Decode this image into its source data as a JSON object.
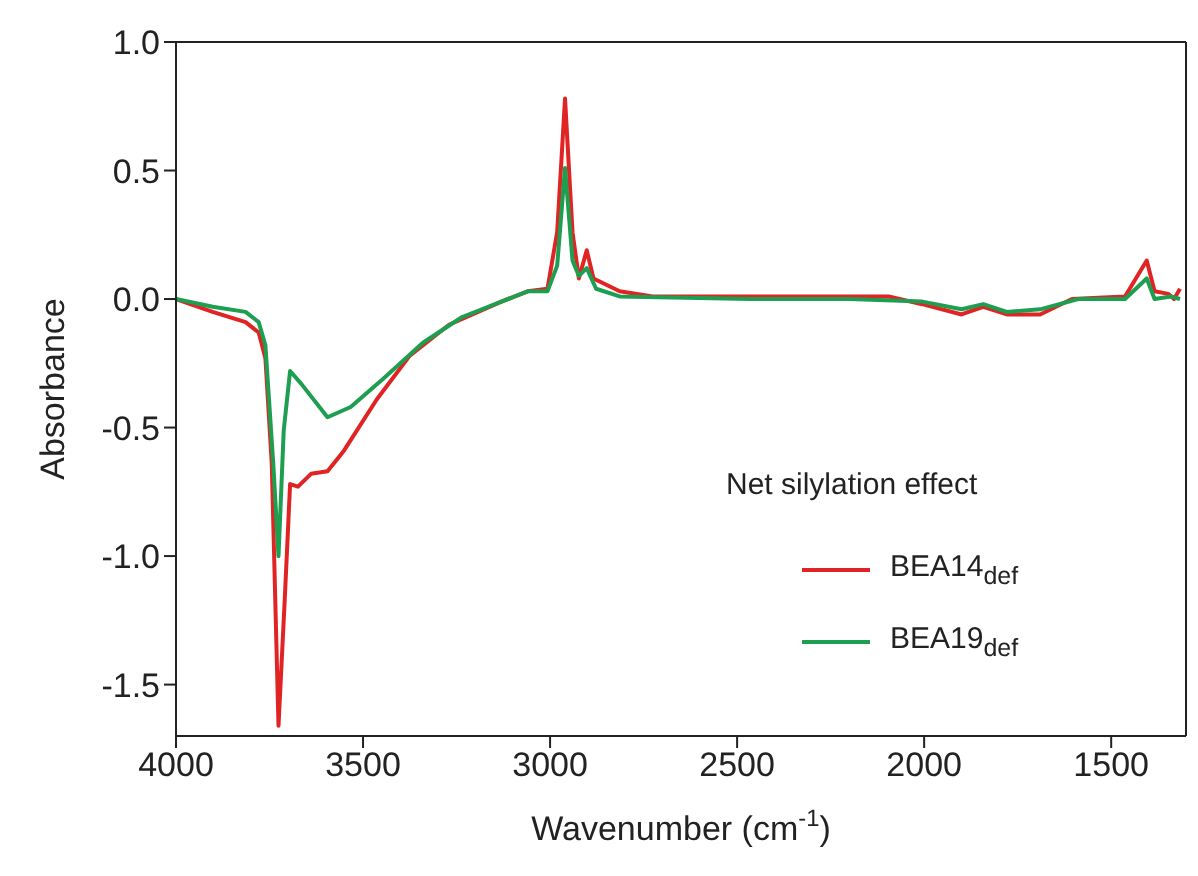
{
  "chart_data": {
    "type": "line",
    "xlabel": "Wavenumber (cm$^{-1}$)",
    "ylabel": "Absorbance",
    "legend_title": "Net silylation effect",
    "legend": "bottom right",
    "marker": "none",
    "line_style": "solid",
    "xlim": [
      4000,
      1300
    ],
    "xticks": [
      4000,
      3500,
      3000,
      2500,
      2000,
      1500
    ],
    "ylim": [
      -1.7,
      1.0
    ],
    "yticks": [
      {
        "value": 1.0,
        "label": "1.0"
      },
      {
        "value": 0.5,
        "label": "0.5"
      },
      {
        "value": 0.0,
        "label": "0.0"
      },
      {
        "value": -0.5,
        "label": "-0.5"
      },
      {
        "value": -1.0,
        "label": "-1.0"
      },
      {
        "value": -1.5,
        "label": "-1.5"
      }
    ],
    "series": [
      {
        "name": "BEA14$_{def}$",
        "color": "#e02424",
        "x": [
          4000,
          3902,
          3814,
          3779,
          3761,
          3744,
          3726,
          3709,
          3695,
          3674,
          3639,
          3595,
          3551,
          3463,
          3375,
          3270,
          3130,
          3060,
          3007,
          2981,
          2960,
          2940,
          2923,
          2902,
          2884,
          2814,
          2726,
          2463,
          2200,
          2095,
          2005,
          1900,
          1842,
          1779,
          1690,
          1605,
          1463,
          1405,
          1384,
          1347,
          1332,
          1316
        ],
        "values": [
          0.0,
          -0.05,
          -0.09,
          -0.13,
          -0.23,
          -0.64,
          -1.66,
          -1.16,
          -0.72,
          -0.73,
          -0.68,
          -0.67,
          -0.59,
          -0.39,
          -0.22,
          -0.1,
          -0.01,
          0.03,
          0.04,
          0.26,
          0.78,
          0.26,
          0.08,
          0.19,
          0.08,
          0.03,
          0.01,
          0.01,
          0.01,
          0.01,
          -0.02,
          -0.06,
          -0.03,
          -0.06,
          -0.06,
          0.0,
          0.01,
          0.15,
          0.03,
          0.02,
          0.0,
          0.04
        ]
      },
      {
        "name": "BEA19$_{def}$",
        "color": "#1e9e50",
        "x": [
          4000,
          3902,
          3814,
          3779,
          3761,
          3740,
          3726,
          3712,
          3695,
          3665,
          3595,
          3533,
          3446,
          3340,
          3235,
          3130,
          3060,
          3007,
          2981,
          2960,
          2940,
          2923,
          2902,
          2877,
          2814,
          2463,
          2200,
          2005,
          1900,
          1842,
          1779,
          1690,
          1588,
          1463,
          1405,
          1384,
          1340,
          1316
        ],
        "values": [
          0.0,
          -0.03,
          -0.05,
          -0.09,
          -0.18,
          -0.64,
          -1.0,
          -0.51,
          -0.28,
          -0.33,
          -0.46,
          -0.42,
          -0.31,
          -0.17,
          -0.07,
          -0.01,
          0.03,
          0.03,
          0.13,
          0.51,
          0.15,
          0.09,
          0.12,
          0.04,
          0.01,
          0.0,
          0.0,
          -0.01,
          -0.04,
          -0.02,
          -0.05,
          -0.04,
          0.0,
          0.0,
          0.08,
          0.0,
          0.01,
          0.0
        ]
      }
    ]
  }
}
